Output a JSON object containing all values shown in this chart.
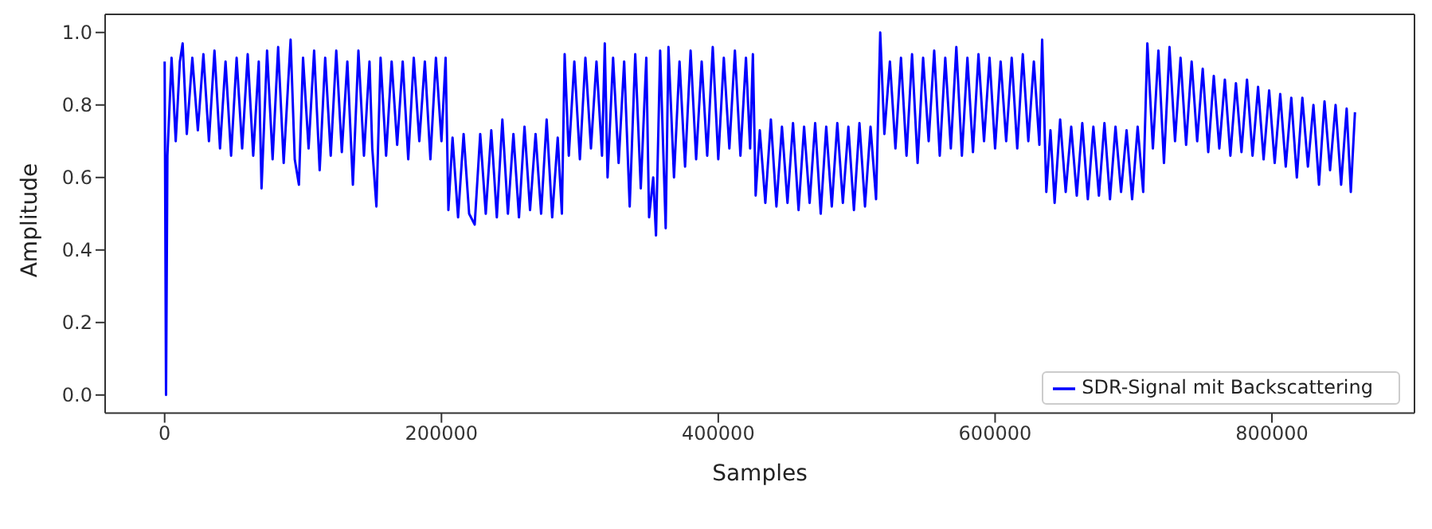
{
  "chart_data": {
    "type": "line",
    "xlabel": "Samples",
    "ylabel": "Amplitude",
    "xlim": [
      -43000,
      903000
    ],
    "xticks": [
      0,
      200000,
      400000,
      600000,
      800000
    ],
    "ylim": [
      -0.05,
      1.05
    ],
    "yticks": [
      {
        "value": 0,
        "label": "0.0"
      },
      0.2,
      0.4,
      0.6,
      0.8,
      {
        "value": 1,
        "label": "1.0"
      }
    ],
    "grid": false,
    "legend": "bottom right",
    "marker": "none",
    "line_style": "solid",
    "x": [
      0,
      1000,
      2000,
      5000,
      8000,
      11000,
      13000,
      16000,
      20000,
      24000,
      28000,
      32000,
      36000,
      40000,
      44000,
      48000,
      52000,
      56000,
      60000,
      64000,
      68000,
      70000,
      74000,
      78000,
      82000,
      86000,
      91000,
      94000,
      97000,
      100000,
      104000,
      108000,
      112000,
      116000,
      120000,
      124000,
      128000,
      132000,
      136000,
      140000,
      144000,
      148000,
      150000,
      153000,
      156000,
      160000,
      164000,
      168000,
      172000,
      176000,
      180000,
      184000,
      188000,
      192000,
      196000,
      200000,
      203000,
      205000,
      208000,
      212000,
      216000,
      220000,
      224000,
      228000,
      232000,
      236000,
      240000,
      244000,
      248000,
      252000,
      256000,
      260000,
      264000,
      268000,
      272000,
      276000,
      280000,
      284000,
      287000,
      289000,
      292000,
      296000,
      300000,
      304000,
      308000,
      312000,
      316000,
      318000,
      320000,
      324000,
      328000,
      332000,
      336000,
      340000,
      344000,
      348000,
      350000,
      353000,
      355000,
      358000,
      362000,
      364000,
      368000,
      372000,
      376000,
      380000,
      384000,
      388000,
      392000,
      396000,
      400000,
      404000,
      408000,
      412000,
      416000,
      420000,
      423000,
      425000,
      427000,
      430000,
      434000,
      438000,
      442000,
      446000,
      450000,
      454000,
      458000,
      462000,
      466000,
      470000,
      474000,
      478000,
      482000,
      486000,
      490000,
      494000,
      498000,
      502000,
      506000,
      510000,
      514000,
      517000,
      520000,
      524000,
      528000,
      532000,
      536000,
      540000,
      544000,
      548000,
      552000,
      556000,
      560000,
      564000,
      568000,
      572000,
      576000,
      580000,
      584000,
      588000,
      592000,
      596000,
      600000,
      604000,
      608000,
      612000,
      616000,
      620000,
      624000,
      628000,
      632000,
      634000,
      637000,
      640000,
      643000,
      647000,
      651000,
      655000,
      659000,
      663000,
      667000,
      671000,
      675000,
      679000,
      683000,
      687000,
      691000,
      695000,
      699000,
      703000,
      707000,
      710000,
      714000,
      718000,
      722000,
      726000,
      730000,
      734000,
      738000,
      742000,
      746000,
      750000,
      754000,
      758000,
      762000,
      766000,
      770000,
      774000,
      778000,
      782000,
      786000,
      790000,
      794000,
      798000,
      802000,
      806000,
      810000,
      814000,
      818000,
      822000,
      826000,
      830000,
      834000,
      838000,
      842000,
      846000,
      850000,
      854000,
      857000,
      860000
    ],
    "series": [
      {
        "name": "SDR-Signal mit Backscattering",
        "color": "#0000ff",
        "values": [
          0.92,
          0.0,
          0.66,
          0.93,
          0.7,
          0.92,
          0.97,
          0.72,
          0.93,
          0.73,
          0.94,
          0.7,
          0.95,
          0.68,
          0.92,
          0.66,
          0.93,
          0.68,
          0.94,
          0.66,
          0.92,
          0.57,
          0.95,
          0.65,
          0.96,
          0.64,
          0.98,
          0.65,
          0.58,
          0.93,
          0.68,
          0.95,
          0.62,
          0.93,
          0.66,
          0.95,
          0.67,
          0.92,
          0.58,
          0.95,
          0.66,
          0.92,
          0.68,
          0.52,
          0.93,
          0.66,
          0.92,
          0.69,
          0.92,
          0.65,
          0.93,
          0.7,
          0.92,
          0.65,
          0.93,
          0.7,
          0.93,
          0.51,
          0.71,
          0.49,
          0.72,
          0.5,
          0.47,
          0.72,
          0.5,
          0.73,
          0.49,
          0.76,
          0.5,
          0.72,
          0.49,
          0.74,
          0.51,
          0.72,
          0.5,
          0.76,
          0.49,
          0.71,
          0.5,
          0.94,
          0.66,
          0.92,
          0.65,
          0.93,
          0.68,
          0.92,
          0.66,
          0.97,
          0.6,
          0.93,
          0.64,
          0.92,
          0.52,
          0.94,
          0.57,
          0.93,
          0.49,
          0.6,
          0.44,
          0.95,
          0.46,
          0.96,
          0.6,
          0.92,
          0.63,
          0.95,
          0.65,
          0.92,
          0.66,
          0.96,
          0.65,
          0.93,
          0.68,
          0.95,
          0.66,
          0.93,
          0.68,
          0.94,
          0.55,
          0.73,
          0.53,
          0.76,
          0.52,
          0.74,
          0.53,
          0.75,
          0.51,
          0.74,
          0.53,
          0.75,
          0.5,
          0.74,
          0.52,
          0.75,
          0.53,
          0.74,
          0.51,
          0.75,
          0.52,
          0.74,
          0.54,
          1.0,
          0.72,
          0.92,
          0.68,
          0.93,
          0.66,
          0.94,
          0.64,
          0.93,
          0.7,
          0.95,
          0.66,
          0.93,
          0.68,
          0.96,
          0.66,
          0.93,
          0.67,
          0.94,
          0.7,
          0.93,
          0.68,
          0.92,
          0.7,
          0.93,
          0.68,
          0.94,
          0.7,
          0.92,
          0.69,
          0.98,
          0.56,
          0.73,
          0.53,
          0.76,
          0.56,
          0.74,
          0.55,
          0.75,
          0.54,
          0.74,
          0.55,
          0.75,
          0.54,
          0.74,
          0.56,
          0.73,
          0.54,
          0.74,
          0.56,
          0.97,
          0.68,
          0.95,
          0.64,
          0.96,
          0.7,
          0.93,
          0.69,
          0.92,
          0.7,
          0.9,
          0.67,
          0.88,
          0.68,
          0.87,
          0.66,
          0.86,
          0.67,
          0.87,
          0.66,
          0.85,
          0.65,
          0.84,
          0.64,
          0.83,
          0.63,
          0.82,
          0.6,
          0.82,
          0.63,
          0.8,
          0.58,
          0.81,
          0.62,
          0.8,
          0.58,
          0.79,
          0.56,
          0.78
        ]
      }
    ]
  }
}
